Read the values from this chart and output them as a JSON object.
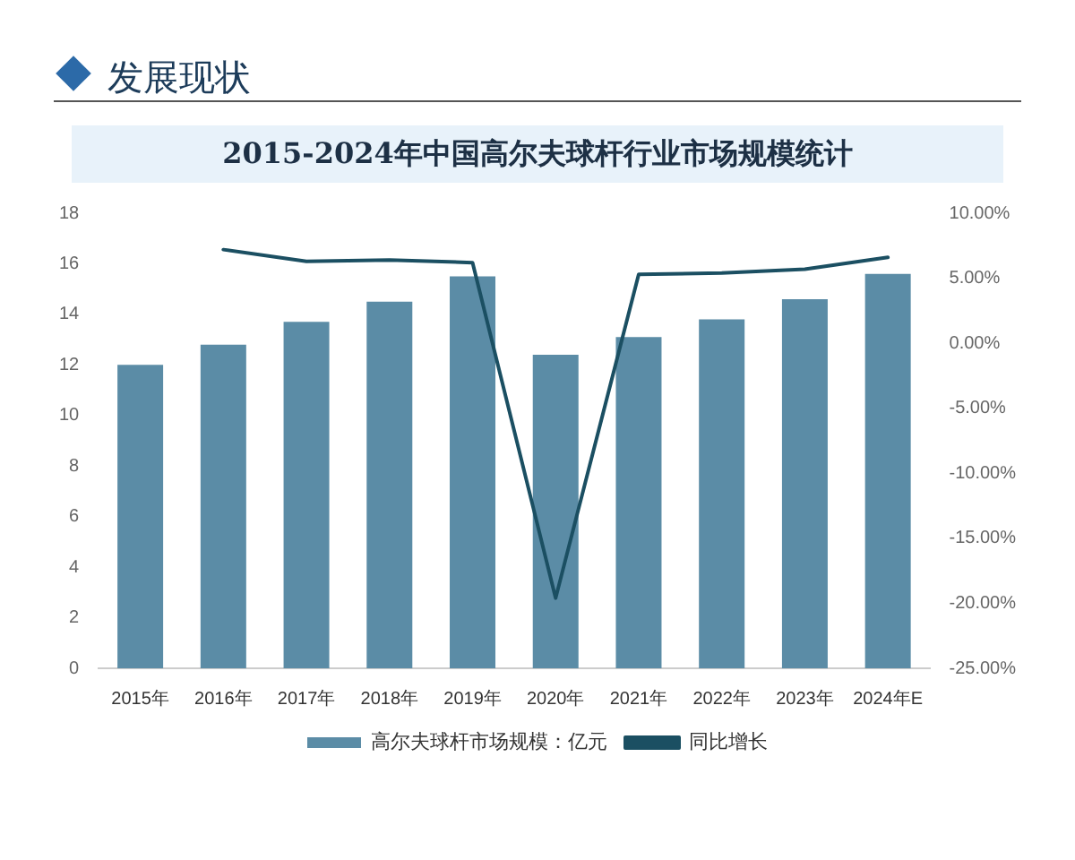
{
  "chart_data": {
    "type": "bar",
    "title": "2015-2024年中国高尔夫球杆行业市场规模统计",
    "subtitle": "发展现状",
    "categories": [
      "2015年",
      "2016年",
      "2017年",
      "2018年",
      "2019年",
      "2020年",
      "2021年",
      "2022年",
      "2023年",
      "2024年E"
    ],
    "series": [
      {
        "name": "高尔夫球杆市场规模：亿元",
        "color": "#5b8ca6",
        "values": [
          12.0,
          12.8,
          13.7,
          14.5,
          15.5,
          12.4,
          13.1,
          13.8,
          14.6,
          15.6
        ]
      },
      {
        "name": "同比增长",
        "type": "line",
        "axis": "y2",
        "color": "#1b4f62",
        "values": [
          null,
          7.2,
          6.3,
          6.4,
          6.2,
          -19.6,
          5.3,
          5.4,
          5.7,
          6.6
        ]
      }
    ],
    "ylim": [
      0,
      18
    ],
    "yticks": [
      0,
      2,
      4,
      6,
      8,
      10,
      12,
      14,
      16,
      18
    ],
    "y2lim": [
      -25,
      10
    ],
    "y2ticks": [
      {
        "value": -25,
        "label": "-25.00%"
      },
      {
        "value": -20,
        "label": "-20.00%"
      },
      {
        "value": -15,
        "label": "-15.00%"
      },
      {
        "value": -10,
        "label": "-10.00%"
      },
      {
        "value": -5,
        "label": "-5.00%"
      },
      {
        "value": 0,
        "label": "0.00%"
      },
      {
        "value": 5,
        "label": "5.00%"
      },
      {
        "value": 10,
        "label": "10.00%"
      }
    ],
    "grid": false,
    "legend": "bottom",
    "marker": "none"
  }
}
